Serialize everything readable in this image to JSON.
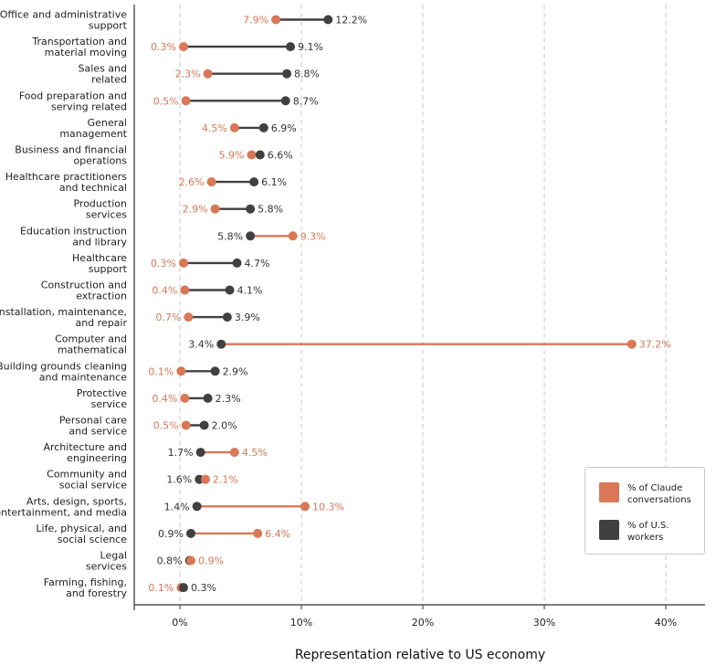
{
  "chart_data": {
    "type": "dumbbell",
    "xlabel": "Representation relative to US economy",
    "xlim": [
      0,
      40
    ],
    "xticks": [
      "0%",
      "10%",
      "20%",
      "30%",
      "40%"
    ],
    "xtick_values": [
      0,
      10,
      20,
      30,
      40
    ],
    "grid": "vertical dashed",
    "legend_placement": "bottom-right",
    "series": [
      {
        "name": "% of Claude conversations",
        "color": "#d97757"
      },
      {
        "name": "% of U.S. workers",
        "color": "#404040"
      }
    ],
    "categories": [
      {
        "label": [
          "Office and administrative",
          "support"
        ],
        "claude": 7.9,
        "workers": 12.2,
        "claude_label": "7.9%",
        "workers_label": "12.2%"
      },
      {
        "label": [
          "Transportation and",
          "material moving"
        ],
        "claude": 0.3,
        "workers": 9.1,
        "claude_label": "0.3%",
        "workers_label": "9.1%"
      },
      {
        "label": [
          "Sales and",
          "related"
        ],
        "claude": 2.3,
        "workers": 8.8,
        "claude_label": "2.3%",
        "workers_label": "8.8%"
      },
      {
        "label": [
          "Food preparation and",
          "serving related"
        ],
        "claude": 0.5,
        "workers": 8.7,
        "claude_label": "0.5%",
        "workers_label": "8.7%"
      },
      {
        "label": [
          "General",
          "management"
        ],
        "claude": 4.5,
        "workers": 6.9,
        "claude_label": "4.5%",
        "workers_label": "6.9%"
      },
      {
        "label": [
          "Business and financial",
          "operations"
        ],
        "claude": 5.9,
        "workers": 6.6,
        "claude_label": "5.9%",
        "workers_label": "6.6%"
      },
      {
        "label": [
          "Healthcare practitioners",
          "and technical"
        ],
        "claude": 2.6,
        "workers": 6.1,
        "claude_label": "2.6%",
        "workers_label": "6.1%"
      },
      {
        "label": [
          "Production",
          "services"
        ],
        "claude": 2.9,
        "workers": 5.8,
        "claude_label": "2.9%",
        "workers_label": "5.8%"
      },
      {
        "label": [
          "Education instruction",
          "and library"
        ],
        "claude": 9.3,
        "workers": 5.8,
        "claude_label": "9.3%",
        "workers_label": "5.8%"
      },
      {
        "label": [
          "Healthcare",
          "support"
        ],
        "claude": 0.3,
        "workers": 4.7,
        "claude_label": "0.3%",
        "workers_label": "4.7%"
      },
      {
        "label": [
          "Construction and",
          "extraction"
        ],
        "claude": 0.4,
        "workers": 4.1,
        "claude_label": "0.4%",
        "workers_label": "4.1%"
      },
      {
        "label": [
          "Installation, maintenance,",
          "and repair"
        ],
        "claude": 0.7,
        "workers": 3.9,
        "claude_label": "0.7%",
        "workers_label": "3.9%"
      },
      {
        "label": [
          "Computer and",
          "mathematical"
        ],
        "claude": 37.2,
        "workers": 3.4,
        "claude_label": "37.2%",
        "workers_label": "3.4%"
      },
      {
        "label": [
          "Building grounds cleaning",
          "and maintenance"
        ],
        "claude": 0.1,
        "workers": 2.9,
        "claude_label": "0.1%",
        "workers_label": "2.9%"
      },
      {
        "label": [
          "Protective",
          "service"
        ],
        "claude": 0.4,
        "workers": 2.3,
        "claude_label": "0.4%",
        "workers_label": "2.3%"
      },
      {
        "label": [
          "Personal care",
          "and service"
        ],
        "claude": 0.5,
        "workers": 2.0,
        "claude_label": "0.5%",
        "workers_label": "2.0%"
      },
      {
        "label": [
          "Architecture and",
          "engineering"
        ],
        "claude": 4.5,
        "workers": 1.7,
        "claude_label": "4.5%",
        "workers_label": "1.7%"
      },
      {
        "label": [
          "Community and",
          "social service"
        ],
        "claude": 2.1,
        "workers": 1.6,
        "claude_label": "2.1%",
        "workers_label": "1.6%"
      },
      {
        "label": [
          "Arts, design, sports,",
          "entertainment, and media"
        ],
        "claude": 10.3,
        "workers": 1.4,
        "claude_label": "10.3%",
        "workers_label": "1.4%"
      },
      {
        "label": [
          "Life, physical, and",
          "social science"
        ],
        "claude": 6.4,
        "workers": 0.9,
        "claude_label": "6.4%",
        "workers_label": "0.9%"
      },
      {
        "label": [
          "Legal",
          "services"
        ],
        "claude": 0.9,
        "workers": 0.8,
        "claude_label": "0.9%",
        "workers_label": "0.8%"
      },
      {
        "label": [
          "Farming, fishing,",
          "and forestry"
        ],
        "claude": 0.1,
        "workers": 0.3,
        "claude_label": "0.1%",
        "workers_label": "0.3%"
      }
    ]
  }
}
